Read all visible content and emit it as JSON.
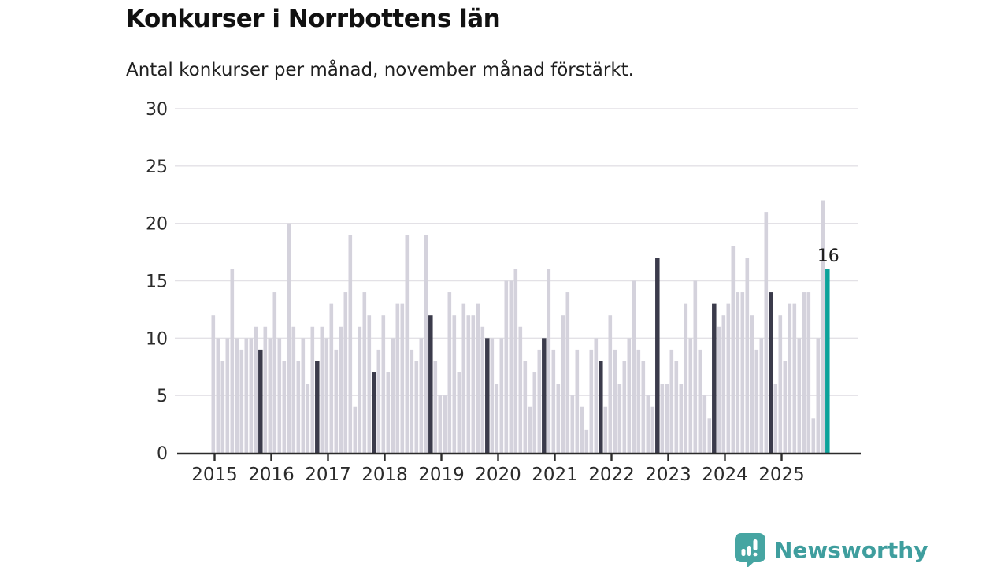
{
  "title": "Konkurser i Norrbottens län",
  "subtitle": "Antal konkurser per månad, november månad förstärkt.",
  "footer": {
    "brand": "Newsworthy",
    "logo_icon": "bar-chart-exclamation-badge"
  },
  "chart_data": {
    "type": "bar",
    "title": "Konkurser i Norrbottens län",
    "subtitle": "Antal konkurser per månad, november månad förstärkt.",
    "unit": "konkurser per månad",
    "period_start": "2015-01",
    "period_end": "2025-11",
    "highlight_rule": "november månad förstärkt (mörk stapel), senaste månaden (nov 2025) i turkos med värdeetikett",
    "x_tick_labels": [
      "2015",
      "2016",
      "2017",
      "2018",
      "2019",
      "2020",
      "2021",
      "2022",
      "2023",
      "2024",
      "2025"
    ],
    "y_ticks": [
      0,
      5,
      10,
      15,
      20,
      25,
      30
    ],
    "ylim": [
      0,
      30
    ],
    "grid": true,
    "legend": "none",
    "annotation": {
      "text": "16",
      "target": "last-bar"
    },
    "colors": {
      "bar": "#d4d2dc",
      "november": "#3b3b4b",
      "current": "#0ba29a",
      "grid": "#e3e1e6",
      "axis": "#2b2b2b",
      "tick_text": "#2b2b2b"
    },
    "series": [
      {
        "name": "Antal konkurser",
        "values": [
          12,
          10,
          8,
          10,
          16,
          10,
          9,
          10,
          10,
          11,
          9,
          11,
          10,
          14,
          10,
          8,
          20,
          11,
          8,
          10,
          6,
          11,
          8,
          11,
          10,
          13,
          9,
          11,
          14,
          19,
          4,
          11,
          14,
          12,
          7,
          9,
          12,
          7,
          10,
          13,
          13,
          19,
          9,
          8,
          10,
          19,
          12,
          8,
          5,
          5,
          14,
          12,
          7,
          13,
          12,
          12,
          13,
          11,
          10,
          10,
          6,
          10,
          15,
          15,
          16,
          11,
          8,
          4,
          7,
          9,
          10,
          16,
          9,
          6,
          12,
          14,
          5,
          9,
          4,
          2,
          9,
          10,
          8,
          4,
          12,
          9,
          6,
          8,
          10,
          15,
          9,
          8,
          5,
          4,
          17,
          6,
          6,
          9,
          8,
          6,
          13,
          10,
          15,
          9,
          5,
          3,
          13,
          11,
          12,
          13,
          18,
          14,
          14,
          17,
          12,
          9,
          10,
          21,
          14,
          6,
          12,
          8,
          13,
          13,
          10,
          14,
          14,
          3,
          10,
          22,
          16
        ]
      }
    ]
  }
}
